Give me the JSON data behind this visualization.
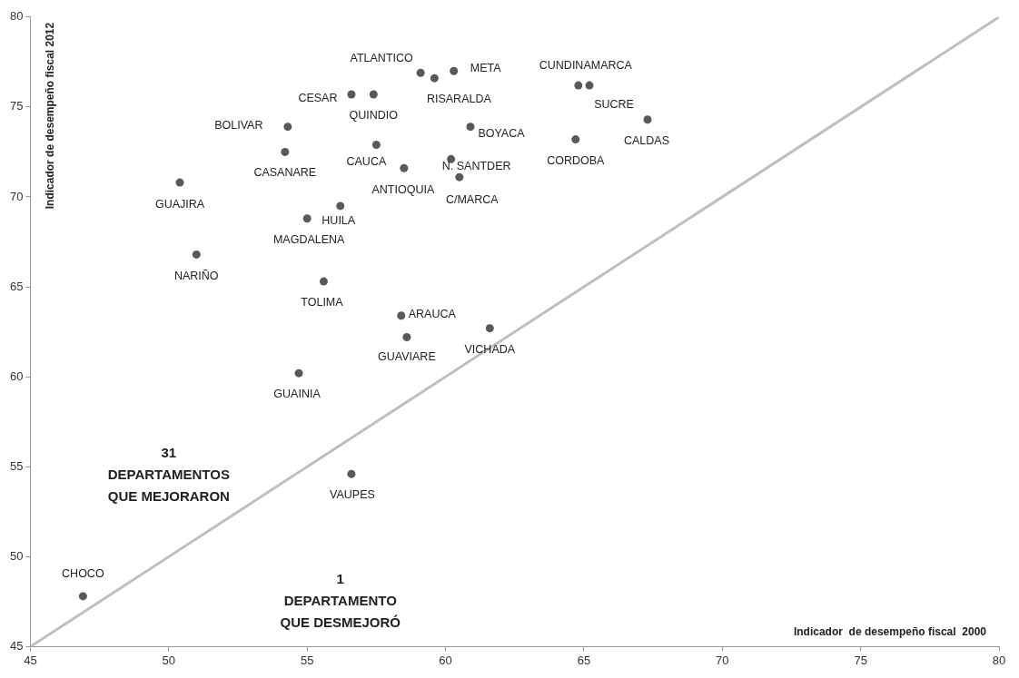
{
  "chart_data": {
    "type": "scatter",
    "xlabel": "Indicador  de desempeño fiscal  2000",
    "ylabel": "Indicador de desempeño fiscal 2012",
    "xlim": [
      45,
      80
    ],
    "xticks": [
      45,
      50,
      55,
      60,
      65,
      70,
      75,
      80
    ],
    "ylim": [
      45,
      80
    ],
    "yticks": [
      45,
      50,
      55,
      60,
      65,
      70,
      75,
      80
    ],
    "grid": false,
    "legend": false,
    "series": [
      {
        "type": "line",
        "color": "#bfbfbf",
        "marker": "none",
        "x": [
          45,
          80
        ],
        "values": [
          45,
          80
        ]
      },
      {
        "color": "#595959",
        "marker": "circle",
        "x": [
          59.1,
          59.6,
          60.3,
          56.6,
          57.4,
          64.8,
          65.2,
          67.3,
          54.3,
          60.9,
          54.2,
          57.5,
          64.7,
          60.2,
          58.5,
          60.5,
          50.4,
          56.2,
          55.0,
          51.0,
          55.6,
          58.4,
          58.6,
          61.6,
          54.7,
          56.6,
          46.9
        ],
        "values": [
          76.9,
          76.6,
          77.0,
          75.7,
          75.7,
          76.2,
          76.2,
          74.3,
          73.9,
          73.9,
          72.5,
          72.9,
          73.2,
          72.1,
          71.6,
          71.1,
          70.8,
          69.5,
          68.8,
          66.8,
          65.3,
          63.4,
          62.2,
          62.7,
          60.2,
          54.6,
          47.8
        ],
        "value_labels": [
          "ATLANTICO",
          "RISARALDA",
          "META",
          "CESAR",
          "QUINDIO",
          "CUNDINAMARCA",
          "SUCRE",
          "CALDAS",
          "BOLIVAR",
          "BOYACA",
          "CASANARE",
          "CAUCA",
          "CORDOBA",
          "N. SANTDER",
          "ANTIOQUIA",
          "C/MARCA",
          "GUAJIRA",
          "HUILA",
          "MAGDALENA",
          "NARIÑO",
          "TOLIMA",
          "ARAUCA",
          "GUAVIARE",
          "VICHADA",
          "GUAINIA",
          "VAUPES",
          "CHOCO"
        ]
      }
    ],
    "annotations": [
      "31\nDEPARTAMENTOS\nQUE MEJORARON",
      "1\nDEPARTAMENTO\nQUE DESMEJORÓ"
    ]
  }
}
